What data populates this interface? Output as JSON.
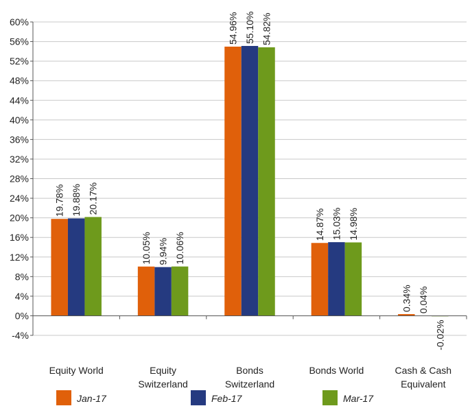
{
  "chart_data": {
    "type": "bar",
    "categories": [
      [
        "Equity World"
      ],
      [
        "Equity",
        "Switzerland"
      ],
      [
        "Bonds",
        "Switzerland"
      ],
      [
        "Bonds World"
      ],
      [
        "Cash & Cash",
        "Equivalent"
      ]
    ],
    "series": [
      {
        "name": "Jan-17",
        "color": "#e0600a",
        "values": [
          19.78,
          10.05,
          54.96,
          14.87,
          0.34
        ],
        "labels": [
          "19.78%",
          "10.05%",
          "54.96%",
          "14.87%",
          "0.34%"
        ]
      },
      {
        "name": "Feb-17",
        "color": "#253a80",
        "values": [
          19.88,
          9.94,
          55.1,
          15.03,
          0.04
        ],
        "labels": [
          "19.88%",
          "9.94%",
          "55.10%",
          "15.03%",
          "0.04%"
        ]
      },
      {
        "name": "Mar-17",
        "color": "#6e9a1c",
        "values": [
          20.17,
          10.06,
          54.82,
          14.98,
          -0.02
        ],
        "labels": [
          "20.17%",
          "10.06%",
          "54.82%",
          "14.98%",
          "-0.02%"
        ]
      }
    ],
    "yticks": [
      -4,
      0,
      4,
      8,
      12,
      16,
      20,
      24,
      28,
      32,
      36,
      40,
      44,
      48,
      52,
      56,
      60
    ],
    "ytick_labels": [
      "-4%",
      "0%",
      "4%",
      "8%",
      "12%",
      "16%",
      "20%",
      "24%",
      "28%",
      "32%",
      "36%",
      "40%",
      "44%",
      "48%",
      "52%",
      "56%",
      "60%"
    ],
    "ylim": [
      -4,
      60
    ],
    "grid": true,
    "legend_position": "bottom",
    "title": "",
    "xlabel": "",
    "ylabel": ""
  }
}
